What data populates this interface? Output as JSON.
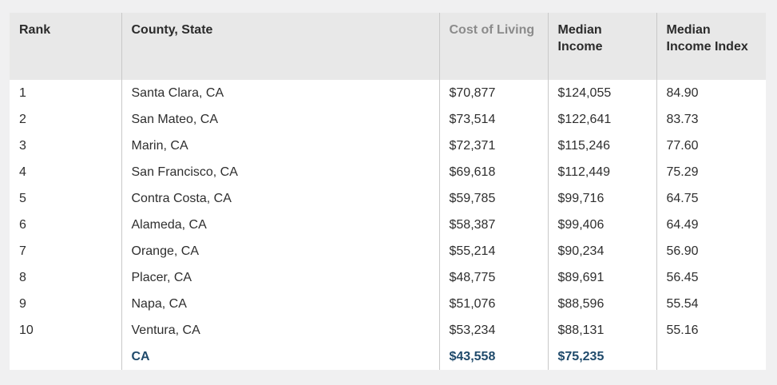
{
  "headers": {
    "rank": "Rank",
    "county": "County, State",
    "cost": "Cost of Living",
    "income_line1": "Median",
    "income_line2": "Income",
    "index_line1": "Median",
    "index_line2": "Income Index"
  },
  "rows": [
    {
      "rank": "1",
      "county": "Santa Clara, CA",
      "cost": "$70,877",
      "income": "$124,055",
      "index": "84.90"
    },
    {
      "rank": "2",
      "county": "San Mateo, CA",
      "cost": "$73,514",
      "income": "$122,641",
      "index": "83.73"
    },
    {
      "rank": "3",
      "county": "Marin, CA",
      "cost": "$72,371",
      "income": "$115,246",
      "index": "77.60"
    },
    {
      "rank": "4",
      "county": "San Francisco, CA",
      "cost": "$69,618",
      "income": "$112,449",
      "index": "75.29"
    },
    {
      "rank": "5",
      "county": "Contra Costa, CA",
      "cost": "$59,785",
      "income": "$99,716",
      "index": "64.75"
    },
    {
      "rank": "6",
      "county": "Alameda, CA",
      "cost": "$58,387",
      "income": "$99,406",
      "index": "64.49"
    },
    {
      "rank": "7",
      "county": "Orange, CA",
      "cost": "$55,214",
      "income": "$90,234",
      "index": "56.90"
    },
    {
      "rank": "8",
      "county": "Placer, CA",
      "cost": "$48,775",
      "income": "$89,691",
      "index": "56.45"
    },
    {
      "rank": "9",
      "county": "Napa, CA",
      "cost": "$51,076",
      "income": "$88,596",
      "index": "55.54"
    },
    {
      "rank": "10",
      "county": "Ventura, CA",
      "cost": "$53,234",
      "income": "$88,131",
      "index": "55.16"
    }
  ],
  "total": {
    "county": "CA",
    "cost": "$43,558",
    "income": "$75,235"
  }
}
